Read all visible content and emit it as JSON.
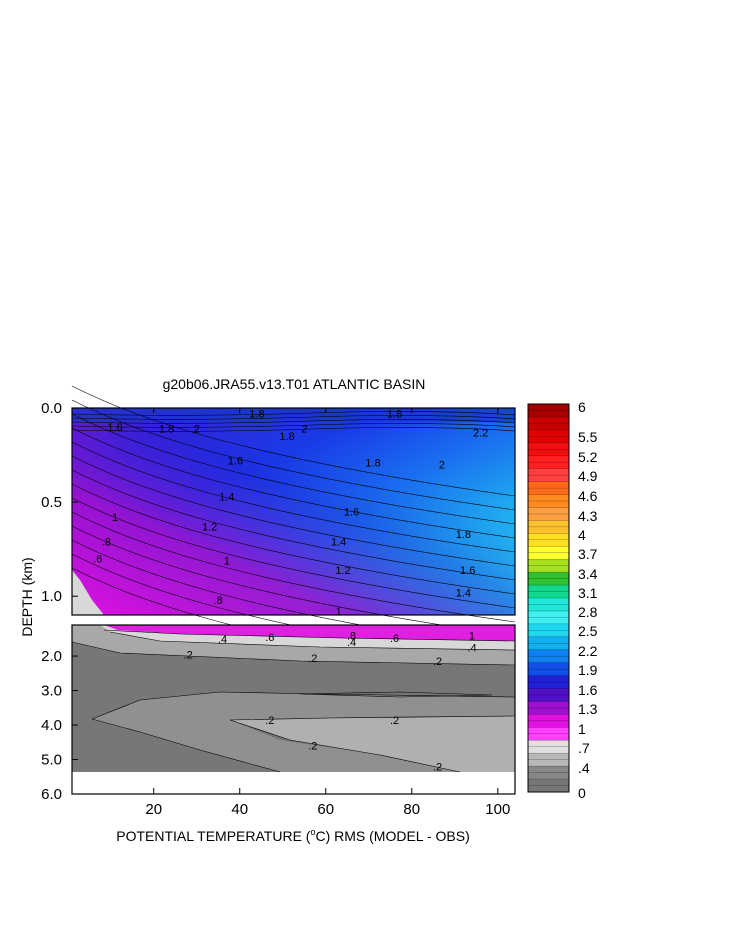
{
  "chart_data": {
    "type": "heatmap",
    "title": "g20b06.JRA55.v13.T01 ATLANTIC BASIN",
    "xlabel": "POTENTIAL TEMPERATURE (°C) RMS (MODEL - OBS)",
    "xlabel_parts": {
      "pre": "POTENTIAL TEMPERATURE (",
      "sup": "o",
      "post": "C) RMS (MODEL - OBS)"
    },
    "ylabel": "DEPTH (km)",
    "xlim": [
      1,
      104
    ],
    "x_ticks": [
      "20",
      "40",
      "60",
      "80",
      "100"
    ],
    "x_tick_values": [
      20,
      40,
      60,
      80,
      100
    ],
    "upper_panel": {
      "ylim": [
        0.0,
        1.1
      ],
      "y_ticks": [
        "0.0",
        "0.5",
        "1.0"
      ],
      "y_tick_values": [
        0.0,
        0.5,
        1.0
      ]
    },
    "lower_panel": {
      "ylim": [
        1.1,
        6.0
      ],
      "y_ticks": [
        "2.0",
        "3.0",
        "4.0",
        "5.0",
        "6.0"
      ],
      "y_tick_values": [
        2.0,
        3.0,
        4.0,
        5.0,
        6.0
      ]
    },
    "colorbar": {
      "labels": [
        "6",
        "5.5",
        "5.2",
        "4.9",
        "4.6",
        "4.3",
        "4",
        "3.7",
        "3.4",
        "3.1",
        "2.8",
        "2.5",
        "2.2",
        "1.9",
        "1.6",
        "1.3",
        "1",
        ".7",
        ".4",
        "0"
      ],
      "levels": [
        6,
        5.5,
        5.2,
        4.9,
        4.6,
        4.3,
        4,
        3.7,
        3.4,
        3.1,
        2.8,
        2.5,
        2.2,
        1.9,
        1.6,
        1.3,
        1,
        0.7,
        0.4,
        0
      ],
      "colors_top_to_bottom": [
        "#a50000",
        "#c80000",
        "#e00000",
        "#f01010",
        "#ff2020",
        "#ff4040",
        "#ff6a1a",
        "#ff8a20",
        "#ffa040",
        "#ffc030",
        "#ffe020",
        "#ffff30",
        "#a8e020",
        "#30c030",
        "#10d890",
        "#20e8d8",
        "#40f0f0",
        "#20d8f0",
        "#10b0f0",
        "#1080f0",
        "#1050e8",
        "#2020d8",
        "#5010c8",
        "#a010d0",
        "#e010e0",
        "#ff40ff",
        "#e0e0e0",
        "#b8b8b8",
        "#888888",
        "#777777"
      ]
    },
    "contour_labels_upper": [
      {
        "text": "1.8",
        "x": 44,
        "y": 0.03
      },
      {
        "text": "1.8",
        "x": 76,
        "y": 0.03
      },
      {
        "text": "1.6",
        "x": 11,
        "y": 0.1
      },
      {
        "text": "1.8",
        "x": 23,
        "y": 0.11
      },
      {
        "text": "2",
        "x": 30,
        "y": 0.11
      },
      {
        "text": "1.8",
        "x": 51,
        "y": 0.15
      },
      {
        "text": "2",
        "x": 55,
        "y": 0.11
      },
      {
        "text": "1.8",
        "x": 71,
        "y": 0.29
      },
      {
        "text": "2",
        "x": 87,
        "y": 0.3
      },
      {
        "text": "2.2",
        "x": 96,
        "y": 0.13
      },
      {
        "text": "1.6",
        "x": 39,
        "y": 0.28
      },
      {
        "text": "1.4",
        "x": 37,
        "y": 0.47
      },
      {
        "text": "1.6",
        "x": 66,
        "y": 0.55
      },
      {
        "text": "1.2",
        "x": 33,
        "y": 0.63
      },
      {
        "text": "1",
        "x": 11,
        "y": 0.58
      },
      {
        "text": ".8",
        "x": 9,
        "y": 0.71
      },
      {
        "text": ".6",
        "x": 7,
        "y": 0.8
      },
      {
        "text": "1",
        "x": 37,
        "y": 0.81
      },
      {
        "text": "1.4",
        "x": 63,
        "y": 0.71
      },
      {
        "text": "1.2",
        "x": 64,
        "y": 0.86
      },
      {
        "text": "1.8",
        "x": 92,
        "y": 0.67
      },
      {
        "text": "1.6",
        "x": 93,
        "y": 0.86
      },
      {
        "text": "1.4",
        "x": 92,
        "y": 0.98
      },
      {
        "text": ".8",
        "x": 35,
        "y": 1.02
      },
      {
        "text": "1",
        "x": 63,
        "y": 1.08
      }
    ],
    "contour_labels_lower": [
      {
        "text": ".4",
        "x": 36,
        "y": 1.5
      },
      {
        "text": ".6",
        "x": 47,
        "y": 1.45
      },
      {
        "text": ".8",
        "x": 66,
        "y": 1.4
      },
      {
        "text": ".4",
        "x": 66,
        "y": 1.6
      },
      {
        "text": ".6",
        "x": 76,
        "y": 1.48
      },
      {
        "text": "1",
        "x": 94,
        "y": 1.4
      },
      {
        "text": ".4",
        "x": 94,
        "y": 1.75
      },
      {
        "text": ".2",
        "x": 28,
        "y": 1.95
      },
      {
        "text": ".2",
        "x": 57,
        "y": 2.05
      },
      {
        "text": ".2",
        "x": 86,
        "y": 2.15
      },
      {
        "text": ".2",
        "x": 47,
        "y": 3.85
      },
      {
        "text": ".2",
        "x": 76,
        "y": 3.85
      },
      {
        "text": ".2",
        "x": 57,
        "y": 4.6
      },
      {
        "text": ".2",
        "x": 86,
        "y": 5.2
      }
    ]
  }
}
